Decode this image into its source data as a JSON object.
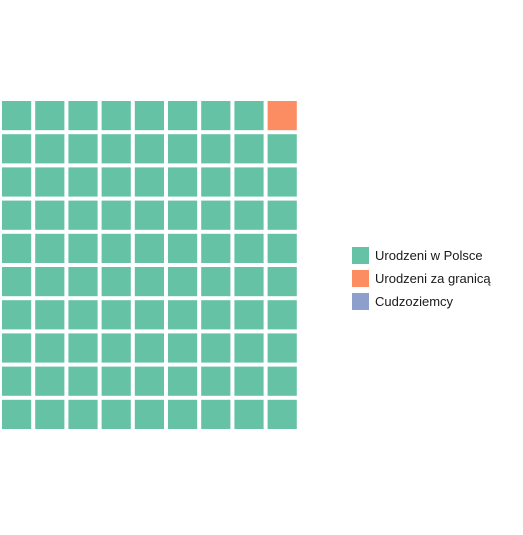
{
  "chart_data": {
    "type": "waffle",
    "grid": {
      "rows": 10,
      "cols": 10,
      "fill_order": "column-wise from bottom-left"
    },
    "total_cells": 100,
    "series": [
      {
        "name": "Urodzeni w Polsce",
        "value": 89,
        "color": "#66c2a5"
      },
      {
        "name": "Urodzeni za granicą",
        "value": 1,
        "color": "#fc8d62"
      },
      {
        "name": "Cudzoziemcy",
        "value": 0,
        "color": "#8da0cb"
      }
    ],
    "empty_cells": 10,
    "legend_position": "right"
  }
}
